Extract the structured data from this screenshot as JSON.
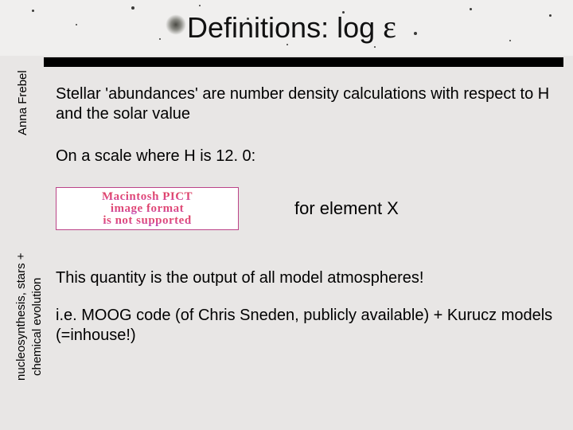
{
  "title": {
    "prefix": "Definitions: log ",
    "epsilon": "ε"
  },
  "author_label": "Anna Frebel",
  "topic_label_line1": "nucleosynthesis, stars +",
  "topic_label_line2": "chemical evolution",
  "paragraphs": {
    "p1": "Stellar 'abundances' are number density calculations with respect to H and the solar value",
    "p2": "On a scale where H is 12. 0:",
    "for_element": "for element X",
    "p4": "This quantity is the output of all model atmospheres!",
    "p5": "i.e. MOOG code (of Chris Sneden, publicly available) + Kurucz models (=inhouse!)"
  },
  "pict_placeholder": {
    "line1": "Macintosh PICT",
    "line2": "image format",
    "line3": "is not supported"
  },
  "colors": {
    "background": "#e8e6e5",
    "rule": "#000000",
    "pict_border": "#bb4488"
  }
}
